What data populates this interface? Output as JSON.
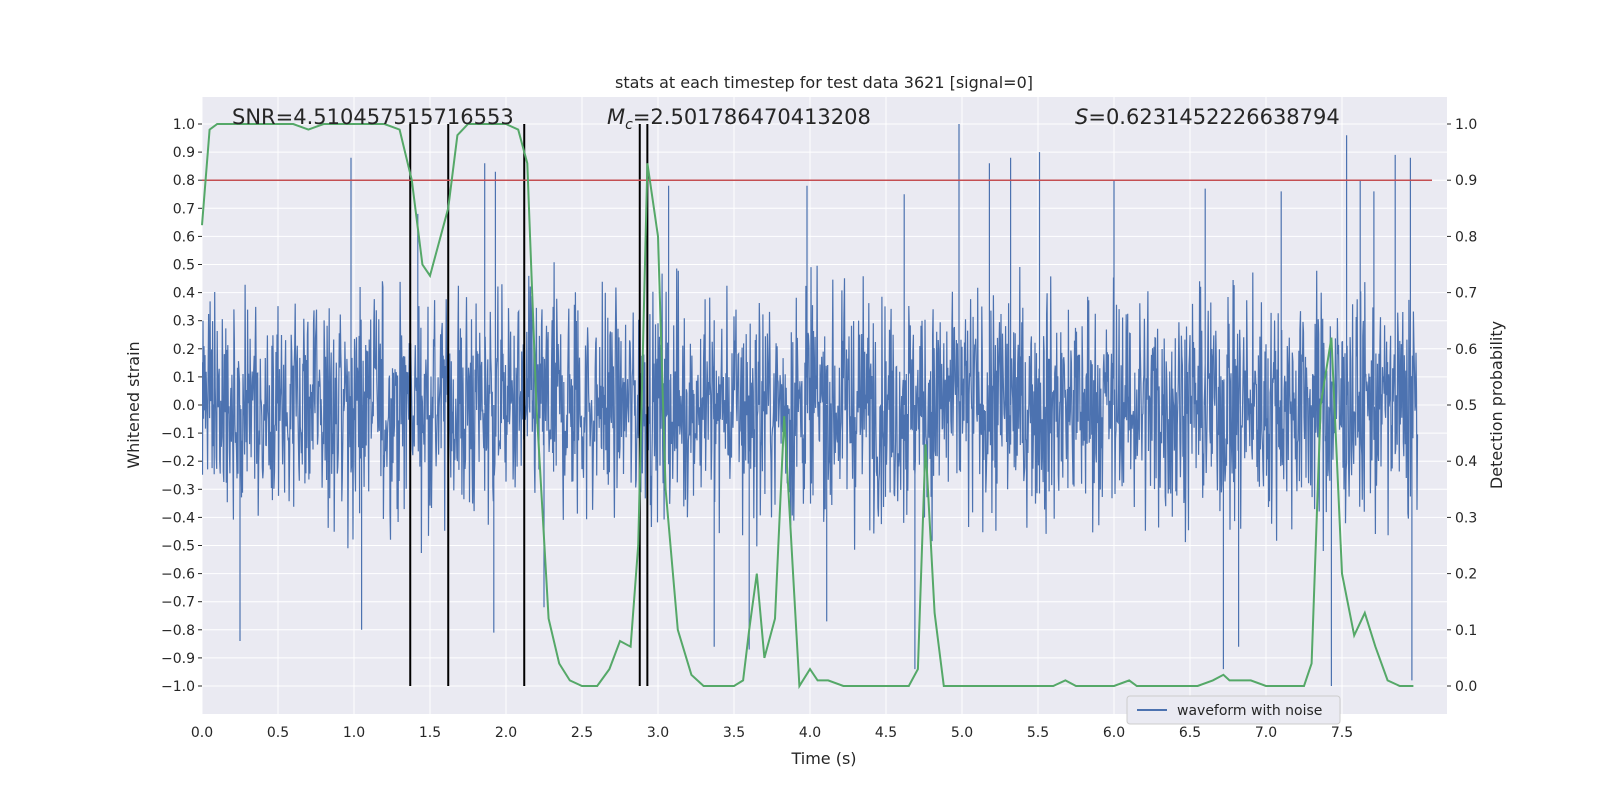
{
  "chart_data": {
    "type": "line",
    "title": "stats at each timestep for test data 3621 [signal=0]",
    "xlabel": "Time (s)",
    "ylabel": "Whitened strain",
    "y2label": "Detection probability",
    "xlim": [
      0.0,
      8.0
    ],
    "ylim": [
      -1.1,
      1.1
    ],
    "y2lim": [
      -0.05,
      1.05
    ],
    "xticks": [
      "0.0",
      "0.5",
      "1.0",
      "1.5",
      "2.0",
      "2.5",
      "3.0",
      "3.5",
      "4.0",
      "4.5",
      "5.0",
      "5.5",
      "6.0",
      "6.5",
      "7.0",
      "7.5"
    ],
    "yticks": [
      "1.0",
      "0.9",
      "0.8",
      "0.7",
      "0.6",
      "0.5",
      "0.4",
      "0.3",
      "0.2",
      "0.1",
      "0.0",
      "−0.1",
      "−0.2",
      "−0.3",
      "−0.4",
      "−0.5",
      "−0.6",
      "−0.7",
      "−0.8",
      "−0.9",
      "−1.0"
    ],
    "y2ticks": [
      "1.0",
      "0.9",
      "0.8",
      "0.7",
      "0.6",
      "0.5",
      "0.4",
      "0.3",
      "0.2",
      "0.1",
      "0.0"
    ],
    "annotations": {
      "snr": "SNR=4.510457515716553",
      "mc_symbol": "M",
      "mc_sub": "c",
      "mc_value": "=2.501786470413208",
      "s_symbol": "S",
      "s_value": "=0.6231452226638794"
    },
    "threshold": {
      "y2": 0.9,
      "color": "#c44e52"
    },
    "vlines_x": [
      1.37,
      1.62,
      2.12,
      2.88,
      2.93
    ],
    "waveform": {
      "name": "waveform with noise",
      "color": "#4c72b0",
      "description_envelope": "dense noise approx. ±0.45 with spikes up to about ±1.0",
      "spikes": [
        [
          0.25,
          -0.84
        ],
        [
          0.98,
          0.88
        ],
        [
          1.05,
          -0.8
        ],
        [
          1.42,
          0.68
        ],
        [
          1.62,
          -0.75
        ],
        [
          1.86,
          0.86
        ],
        [
          1.93,
          0.83
        ],
        [
          1.92,
          -0.81
        ],
        [
          2.25,
          -0.72
        ],
        [
          3.07,
          0.78
        ],
        [
          3.37,
          -0.86
        ],
        [
          3.6,
          -0.87
        ],
        [
          3.98,
          0.78
        ],
        [
          4.11,
          -0.77
        ],
        [
          4.62,
          0.75
        ],
        [
          4.69,
          -0.94
        ],
        [
          4.98,
          1.0
        ],
        [
          5.18,
          0.86
        ],
        [
          5.32,
          0.88
        ],
        [
          5.51,
          0.9
        ],
        [
          6.0,
          0.8
        ],
        [
          6.6,
          0.77
        ],
        [
          6.72,
          -0.94
        ],
        [
          6.82,
          -0.86
        ],
        [
          7.1,
          0.76
        ],
        [
          7.43,
          -1.0
        ],
        [
          7.53,
          0.96
        ],
        [
          7.62,
          0.8
        ],
        [
          7.71,
          0.76
        ],
        [
          7.85,
          0.89
        ],
        [
          7.95,
          0.88
        ],
        [
          7.96,
          -0.98
        ]
      ]
    },
    "detection_probability": {
      "color": "#55a868",
      "x": [
        0.0,
        0.05,
        0.1,
        0.2,
        0.3,
        0.4,
        0.5,
        0.6,
        0.7,
        0.8,
        0.9,
        1.0,
        1.1,
        1.2,
        1.3,
        1.38,
        1.45,
        1.5,
        1.55,
        1.62,
        1.68,
        1.75,
        1.82,
        1.9,
        2.0,
        2.08,
        2.14,
        2.2,
        2.28,
        2.35,
        2.42,
        2.5,
        2.6,
        2.68,
        2.75,
        2.82,
        2.87,
        2.93,
        3.0,
        3.05,
        3.13,
        3.22,
        3.3,
        3.4,
        3.5,
        3.56,
        3.6,
        3.65,
        3.7,
        3.77,
        3.83,
        3.88,
        3.93,
        4.0,
        4.05,
        4.12,
        4.22,
        4.3,
        4.5,
        4.65,
        4.71,
        4.76,
        4.82,
        4.88,
        4.95,
        5.2,
        5.4,
        5.6,
        5.68,
        5.75,
        5.9,
        6.0,
        6.1,
        6.15,
        6.25,
        6.4,
        6.55,
        6.65,
        6.72,
        6.76,
        6.82,
        6.9,
        7.0,
        7.1,
        7.2,
        7.25,
        7.3,
        7.36,
        7.43,
        7.5,
        7.58,
        7.65,
        7.72,
        7.8,
        7.88,
        7.97
      ],
      "y": [
        0.82,
        0.99,
        1.0,
        1.0,
        1.0,
        1.0,
        1.0,
        1.0,
        0.99,
        1.0,
        1.0,
        1.0,
        1.0,
        1.0,
        0.99,
        0.9,
        0.75,
        0.73,
        0.78,
        0.85,
        0.98,
        1.0,
        1.0,
        1.0,
        1.0,
        0.99,
        0.93,
        0.5,
        0.12,
        0.04,
        0.01,
        0.0,
        0.0,
        0.03,
        0.08,
        0.07,
        0.25,
        0.93,
        0.8,
        0.35,
        0.1,
        0.02,
        0.0,
        0.0,
        0.0,
        0.01,
        0.1,
        0.2,
        0.05,
        0.12,
        0.48,
        0.24,
        0.0,
        0.03,
        0.01,
        0.01,
        0.0,
        0.0,
        0.0,
        0.0,
        0.03,
        0.43,
        0.13,
        0.0,
        0.0,
        0.0,
        0.0,
        0.0,
        0.01,
        0.0,
        0.0,
        0.0,
        0.01,
        0.0,
        0.0,
        0.0,
        0.0,
        0.01,
        0.02,
        0.01,
        0.01,
        0.01,
        0.0,
        0.0,
        0.0,
        0.0,
        0.04,
        0.5,
        0.62,
        0.2,
        0.09,
        0.13,
        0.07,
        0.01,
        0.0,
        0.0
      ]
    },
    "legend": {
      "label": "waveform with noise",
      "placement": "bottom-right"
    }
  }
}
